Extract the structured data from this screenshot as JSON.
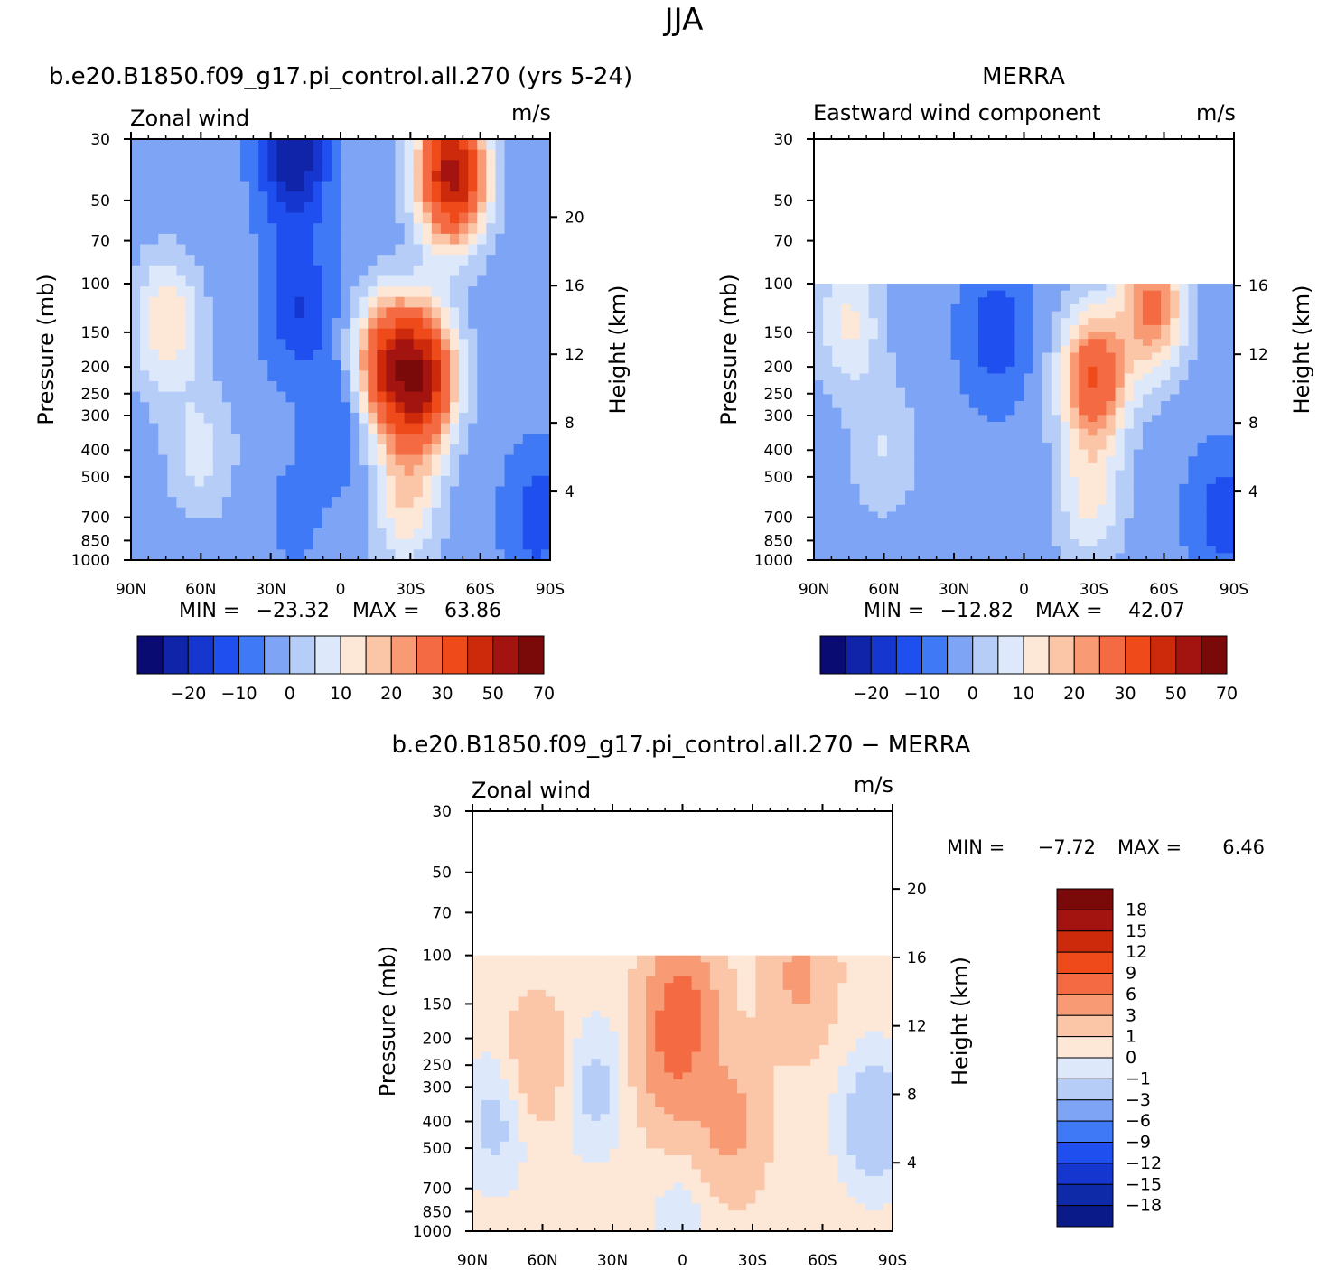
{
  "figure": {
    "title": "JJA"
  },
  "chart_data": [
    {
      "type": "contour",
      "id": "model",
      "title": "b.e20.B1850.f09_g17.pi_control.all.270 (yrs 5-24)",
      "left_label": "Zonal wind",
      "right_label": "m/s",
      "ylabel": "Pressure (mb)",
      "y2label": "Height (km)",
      "x_ticks": [
        "90N",
        "60N",
        "30N",
        "0",
        "30S",
        "60S",
        "90S"
      ],
      "y_ticks": [
        "30",
        "50",
        "70",
        "100",
        "150",
        "200",
        "250",
        "300",
        "400",
        "500",
        "700",
        "850",
        "1000"
      ],
      "y2_ticks": [
        "20",
        "16",
        "12",
        "8",
        "4"
      ],
      "data_top_mb": 30,
      "min": -23.32,
      "max": 63.86,
      "min_label": "MIN =",
      "max_label": "MAX =",
      "min_text": "−23.32",
      "max_text": "63.86",
      "colorbar_labels": [
        "−20",
        "−10",
        "0",
        "10",
        "20",
        "30",
        "50",
        "70"
      ],
      "fields": [
        {
          "lat": 75,
          "p": 140,
          "v": 18
        },
        {
          "lat": 60,
          "p": 400,
          "v": 10
        },
        {
          "lat": 20,
          "p": 35,
          "v": -22
        },
        {
          "lat": 18,
          "p": 120,
          "v": -12
        },
        {
          "lat": 20,
          "p": 700,
          "v": -3
        },
        {
          "lat": -20,
          "p": 200,
          "v": 42
        },
        {
          "lat": -35,
          "p": 220,
          "v": 55
        },
        {
          "lat": -48,
          "p": 40,
          "v": 62
        },
        {
          "lat": -28,
          "p": 600,
          "v": 18
        },
        {
          "lat": 0,
          "p": 300,
          "v": -8
        },
        {
          "lat": -85,
          "p": 700,
          "v": -10
        }
      ]
    },
    {
      "type": "contour",
      "id": "merra",
      "title": "MERRA",
      "left_label": "Eastward wind component",
      "right_label": "m/s",
      "ylabel": "Pressure (mb)",
      "y2label": "Height (km)",
      "x_ticks": [
        "90N",
        "60N",
        "30N",
        "0",
        "30S",
        "60S",
        "90S"
      ],
      "y_ticks": [
        "30",
        "50",
        "70",
        "100",
        "150",
        "200",
        "250",
        "300",
        "400",
        "500",
        "700",
        "850",
        "1000"
      ],
      "y2_ticks": [
        "16",
        "12",
        "8",
        "4"
      ],
      "data_top_mb": 100,
      "min": -12.82,
      "max": 42.07,
      "min_label": "MIN =",
      "max_label": "MAX =",
      "min_text": "−12.82",
      "max_text": "42.07",
      "colorbar_labels": [
        "−20",
        "−10",
        "0",
        "10",
        "20",
        "30",
        "50",
        "70"
      ],
      "fields": [
        {
          "lat": 75,
          "p": 140,
          "v": 14
        },
        {
          "lat": 60,
          "p": 400,
          "v": 8
        },
        {
          "lat": 12,
          "p": 150,
          "v": -11
        },
        {
          "lat": 15,
          "p": 700,
          "v": -2
        },
        {
          "lat": -30,
          "p": 220,
          "v": 38
        },
        {
          "lat": -55,
          "p": 120,
          "v": 30
        },
        {
          "lat": -28,
          "p": 600,
          "v": 14
        },
        {
          "lat": -85,
          "p": 700,
          "v": -10
        }
      ]
    },
    {
      "type": "contour",
      "id": "diff",
      "title": "b.e20.B1850.f09_g17.pi_control.all.270 − MERRA",
      "left_label": "Zonal wind",
      "right_label": "m/s",
      "ylabel": "Pressure (mb)",
      "y2label": "Height (km)",
      "x_ticks": [
        "90N",
        "60N",
        "30N",
        "0",
        "30S",
        "60S",
        "90S"
      ],
      "y_ticks": [
        "30",
        "50",
        "70",
        "100",
        "150",
        "200",
        "250",
        "300",
        "400",
        "500",
        "700",
        "850",
        "1000"
      ],
      "y2_ticks": [
        "20",
        "16",
        "12",
        "8",
        "4"
      ],
      "data_top_mb": 100,
      "min": -7.72,
      "max": 6.46,
      "min_label": "MIN =",
      "max_label": "MAX =",
      "min_text": "−7.72",
      "max_text": "6.46",
      "colorbar_labels": [
        "18",
        "15",
        "12",
        "9",
        "6",
        "3",
        "1",
        "0",
        "−1",
        "−3",
        "−6",
        "−9",
        "−12",
        "−15",
        "−18"
      ],
      "fields": [
        {
          "lat": 80,
          "p": 400,
          "v": -2
        },
        {
          "lat": 62,
          "p": 250,
          "v": 2
        },
        {
          "lat": 38,
          "p": 300,
          "v": -2
        },
        {
          "lat": 5,
          "p": 250,
          "v": 4
        },
        {
          "lat": 0,
          "p": 150,
          "v": 6
        },
        {
          "lat": -20,
          "p": 400,
          "v": 3.5
        },
        {
          "lat": -50,
          "p": 120,
          "v": 3
        },
        {
          "lat": -82,
          "p": 400,
          "v": -3
        },
        {
          "lat": 0,
          "p": 900,
          "v": -1
        }
      ]
    }
  ],
  "colors": {
    "model_scale": [
      "#0a0a73",
      "#0f24a8",
      "#1536cf",
      "#1f4fee",
      "#4079f5",
      "#7ea4f5",
      "#b5cdf7",
      "#dde9fb",
      "#fde7d6",
      "#fbc5a8",
      "#f89a74",
      "#f46b43",
      "#ee4a1a",
      "#cc2a0a",
      "#a31410",
      "#7a0a0a"
    ],
    "diff_scale": [
      "#0a1a88",
      "#0f2aa8",
      "#1536cf",
      "#1f4fee",
      "#4079f5",
      "#7ea4f5",
      "#b5cdf7",
      "#dde9fb",
      "#fde7d6",
      "#fbc5a8",
      "#f89a74",
      "#f46b43",
      "#ee4a1a",
      "#cc2a0a",
      "#a31410",
      "#7a0a0a"
    ]
  }
}
